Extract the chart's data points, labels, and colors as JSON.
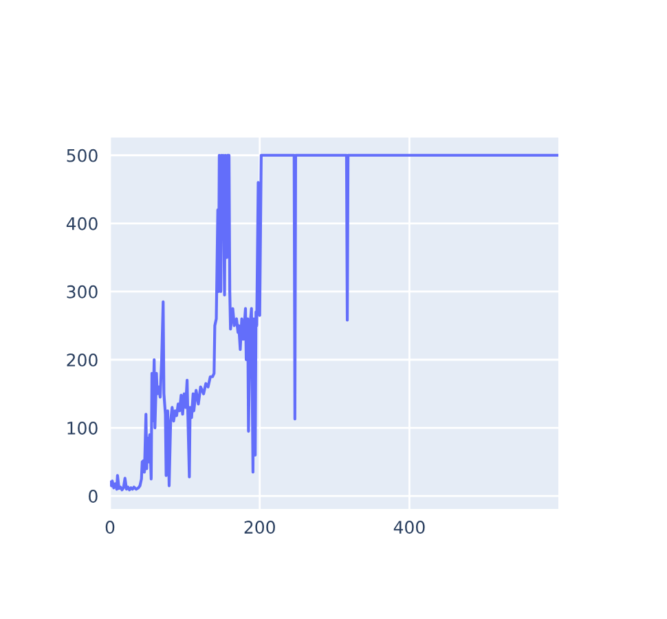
{
  "chart_data": {
    "type": "line",
    "color": "#636efa",
    "line_style": "solid",
    "grid": true,
    "x": [
      0,
      2,
      3,
      5,
      7,
      9,
      10,
      12,
      14,
      16,
      18,
      20,
      22,
      24,
      26,
      28,
      30,
      32,
      35,
      38,
      40,
      42,
      43,
      45,
      46,
      48,
      49,
      50,
      51,
      53,
      55,
      56,
      57,
      59,
      60,
      62,
      63,
      65,
      67,
      69,
      71,
      72,
      74,
      75,
      77,
      79,
      81,
      83,
      85,
      87,
      89,
      91,
      93,
      95,
      97,
      99,
      101,
      103,
      104,
      106,
      107,
      109,
      111,
      112,
      115,
      118,
      121,
      125,
      128,
      131,
      134,
      137,
      139,
      140,
      142,
      144,
      145,
      146,
      148,
      149,
      150,
      151,
      153,
      154,
      156,
      157,
      159,
      160,
      161,
      164,
      166,
      169,
      171,
      172,
      174,
      176,
      178,
      181,
      182,
      184,
      185,
      187,
      189,
      191,
      192,
      194,
      195,
      196,
      198,
      200,
      202,
      246,
      247,
      248,
      316,
      317,
      318,
      599
    ],
    "values": [
      20,
      15,
      22,
      12,
      18,
      10,
      30,
      11,
      13,
      9,
      12,
      26,
      10,
      13,
      9,
      12,
      10,
      13,
      10,
      12,
      15,
      25,
      50,
      52,
      35,
      120,
      40,
      85,
      50,
      90,
      25,
      180,
      110,
      200,
      100,
      180,
      150,
      160,
      145,
      200,
      285,
      150,
      120,
      30,
      125,
      15,
      110,
      130,
      110,
      125,
      118,
      135,
      125,
      148,
      120,
      150,
      130,
      170,
      120,
      28,
      130,
      115,
      150,
      125,
      155,
      135,
      160,
      150,
      165,
      160,
      175,
      175,
      180,
      250,
      260,
      420,
      300,
      500,
      300,
      500,
      420,
      500,
      295,
      500,
      350,
      500,
      500,
      300,
      245,
      275,
      250,
      260,
      240,
      250,
      215,
      260,
      230,
      275,
      200,
      260,
      95,
      250,
      275,
      35,
      260,
      60,
      270,
      250,
      460,
      265,
      500,
      500,
      113,
      500,
      500,
      258,
      500,
      500
    ],
    "xlim": [
      0,
      599
    ],
    "ylim": [
      -19,
      526
    ],
    "xticks": [
      0,
      200,
      400
    ],
    "yticks": [
      0,
      100,
      200,
      300,
      400,
      500
    ]
  }
}
